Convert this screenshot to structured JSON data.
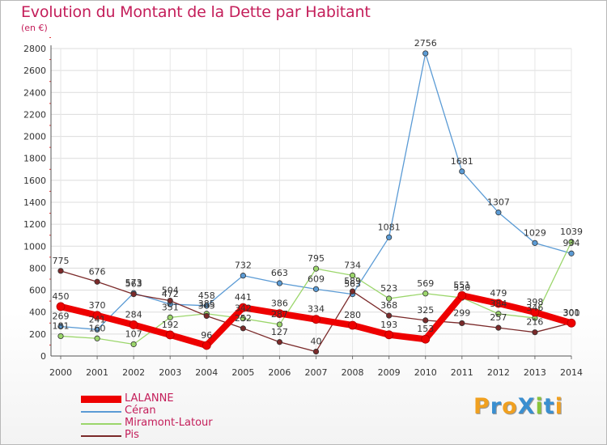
{
  "title": "Evolution du Montant de la Dette par Habitant",
  "subtitle": "(en €)",
  "brand": {
    "text": "ProXiti",
    "letters": [
      "P",
      "r",
      "o",
      "X",
      "i",
      "t",
      "i"
    ],
    "colors": [
      "#f0a020",
      "#3a8fd0",
      "#f0a020",
      "#3a8fd0",
      "#8ac43a",
      "#3a8fd0",
      "#f0a020"
    ]
  },
  "chart_data": {
    "type": "line",
    "x": [
      "2000",
      "2001",
      "2002",
      "2003",
      "2004",
      "2005",
      "2006",
      "2007",
      "2008",
      "2009",
      "2010",
      "2011",
      "2012",
      "2013",
      "2014"
    ],
    "ylim": [
      0,
      2800
    ],
    "yticks": [
      0,
      200,
      400,
      600,
      800,
      1000,
      1200,
      1400,
      1600,
      1800,
      2000,
      2200,
      2400,
      2600,
      2800
    ],
    "grid": true,
    "legend_position": "bottom-left",
    "series": [
      {
        "name": "LALANNE",
        "color": "#ee0000",
        "values": [
          450,
          370,
          284,
          192,
          96,
          441,
          386,
          334,
          280,
          193,
          153,
          551,
          479,
          398,
          300
        ]
      },
      {
        "name": "Céran",
        "color": "#5b9bd5",
        "values": [
          269,
          241,
          573,
          472,
          458,
          732,
          663,
          609,
          563,
          1081,
          2756,
          1681,
          1307,
          1029,
          934
        ]
      },
      {
        "name": "Miramont-Latour",
        "color": "#9bd66b",
        "values": [
          181,
          160,
          107,
          351,
          385,
          342,
          287,
          795,
          734,
          523,
          569,
          530,
          384,
          346,
          1039
        ]
      },
      {
        "name": "Pis",
        "color": "#7b2a2a",
        "values": [
          775,
          676,
          563,
          504,
          365,
          252,
          127,
          40,
          589,
          368,
          325,
          299,
          257,
          216,
          301
        ]
      }
    ]
  }
}
